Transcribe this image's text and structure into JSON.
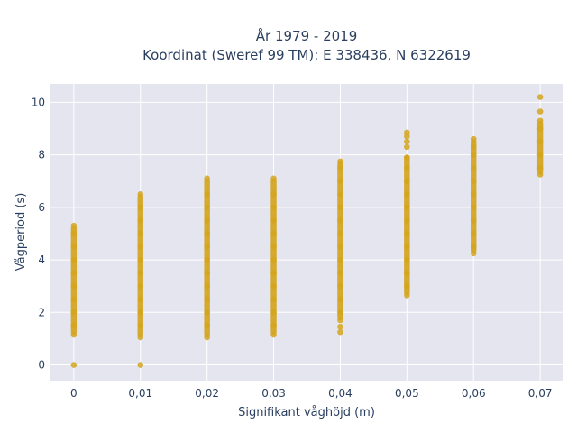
{
  "chart_data": {
    "type": "scatter",
    "title_line1": "År 1979 - 2019",
    "title_line2": "Koordinat (Sweref 99 TM): E 338436, N 6322619",
    "xlabel": "Signifikant våghöjd (m)",
    "ylabel": "Vågperiod (s)",
    "x_ticks": [
      "0",
      "0,01",
      "0,02",
      "0,03",
      "0,04",
      "0,05",
      "0,06",
      "0,07"
    ],
    "y_ticks": [
      "0",
      "2",
      "4",
      "6",
      "8",
      "10"
    ],
    "x_values": [
      0,
      0.01,
      0.02,
      0.03,
      0.04,
      0.05,
      0.06,
      0.07
    ],
    "xlim": [
      -0.0035,
      0.0735
    ],
    "ylim": [
      -0.6,
      10.7
    ],
    "grid": true,
    "marker_color": "#d4a41c",
    "plot_background": "#e5e5ef",
    "points": [
      {
        "x": 0,
        "y": 0
      },
      {
        "x": 0,
        "y": 1.15
      },
      {
        "x": 0,
        "y": 1.5
      },
      {
        "x": 0,
        "y": 2.0
      },
      {
        "x": 0,
        "y": 2.5
      },
      {
        "x": 0,
        "y": 3.0
      },
      {
        "x": 0,
        "y": 3.5
      },
      {
        "x": 0,
        "y": 4.0
      },
      {
        "x": 0,
        "y": 4.5
      },
      {
        "x": 0,
        "y": 5.0
      },
      {
        "x": 0,
        "y": 5.3
      },
      {
        "x": 0.01,
        "y": 0
      },
      {
        "x": 0.01,
        "y": 1.05
      },
      {
        "x": 0.01,
        "y": 1.5
      },
      {
        "x": 0.01,
        "y": 2.0
      },
      {
        "x": 0.01,
        "y": 2.5
      },
      {
        "x": 0.01,
        "y": 3.0
      },
      {
        "x": 0.01,
        "y": 3.5
      },
      {
        "x": 0.01,
        "y": 4.0
      },
      {
        "x": 0.01,
        "y": 4.5
      },
      {
        "x": 0.01,
        "y": 5.0
      },
      {
        "x": 0.01,
        "y": 5.5
      },
      {
        "x": 0.01,
        "y": 6.0
      },
      {
        "x": 0.01,
        "y": 6.5
      },
      {
        "x": 0.02,
        "y": 1.05
      },
      {
        "x": 0.02,
        "y": 1.5
      },
      {
        "x": 0.02,
        "y": 2.0
      },
      {
        "x": 0.02,
        "y": 2.5
      },
      {
        "x": 0.02,
        "y": 3.0
      },
      {
        "x": 0.02,
        "y": 3.5
      },
      {
        "x": 0.02,
        "y": 4.0
      },
      {
        "x": 0.02,
        "y": 4.5
      },
      {
        "x": 0.02,
        "y": 5.0
      },
      {
        "x": 0.02,
        "y": 5.5
      },
      {
        "x": 0.02,
        "y": 6.0
      },
      {
        "x": 0.02,
        "y": 6.5
      },
      {
        "x": 0.02,
        "y": 7.1
      },
      {
        "x": 0.03,
        "y": 1.15
      },
      {
        "x": 0.03,
        "y": 1.5
      },
      {
        "x": 0.03,
        "y": 2.0
      },
      {
        "x": 0.03,
        "y": 2.5
      },
      {
        "x": 0.03,
        "y": 3.0
      },
      {
        "x": 0.03,
        "y": 3.5
      },
      {
        "x": 0.03,
        "y": 4.0
      },
      {
        "x": 0.03,
        "y": 4.5
      },
      {
        "x": 0.03,
        "y": 5.0
      },
      {
        "x": 0.03,
        "y": 5.5
      },
      {
        "x": 0.03,
        "y": 6.0
      },
      {
        "x": 0.03,
        "y": 6.5
      },
      {
        "x": 0.03,
        "y": 7.1
      },
      {
        "x": 0.04,
        "y": 1.25
      },
      {
        "x": 0.04,
        "y": 1.45
      },
      {
        "x": 0.04,
        "y": 1.7
      },
      {
        "x": 0.04,
        "y": 2.0
      },
      {
        "x": 0.04,
        "y": 2.5
      },
      {
        "x": 0.04,
        "y": 3.0
      },
      {
        "x": 0.04,
        "y": 3.5
      },
      {
        "x": 0.04,
        "y": 4.0
      },
      {
        "x": 0.04,
        "y": 4.5
      },
      {
        "x": 0.04,
        "y": 5.0
      },
      {
        "x": 0.04,
        "y": 5.5
      },
      {
        "x": 0.04,
        "y": 6.0
      },
      {
        "x": 0.04,
        "y": 6.5
      },
      {
        "x": 0.04,
        "y": 7.0
      },
      {
        "x": 0.04,
        "y": 7.5
      },
      {
        "x": 0.04,
        "y": 7.75
      },
      {
        "x": 0.05,
        "y": 2.65
      },
      {
        "x": 0.05,
        "y": 3.0
      },
      {
        "x": 0.05,
        "y": 3.5
      },
      {
        "x": 0.05,
        "y": 4.0
      },
      {
        "x": 0.05,
        "y": 4.5
      },
      {
        "x": 0.05,
        "y": 5.0
      },
      {
        "x": 0.05,
        "y": 5.5
      },
      {
        "x": 0.05,
        "y": 6.0
      },
      {
        "x": 0.05,
        "y": 6.5
      },
      {
        "x": 0.05,
        "y": 7.0
      },
      {
        "x": 0.05,
        "y": 7.5
      },
      {
        "x": 0.05,
        "y": 7.9
      },
      {
        "x": 0.05,
        "y": 8.3
      },
      {
        "x": 0.05,
        "y": 8.5
      },
      {
        "x": 0.05,
        "y": 8.7
      },
      {
        "x": 0.05,
        "y": 8.85
      },
      {
        "x": 0.06,
        "y": 4.25
      },
      {
        "x": 0.06,
        "y": 4.5
      },
      {
        "x": 0.06,
        "y": 5.0
      },
      {
        "x": 0.06,
        "y": 5.5
      },
      {
        "x": 0.06,
        "y": 6.0
      },
      {
        "x": 0.06,
        "y": 6.5
      },
      {
        "x": 0.06,
        "y": 7.0
      },
      {
        "x": 0.06,
        "y": 7.5
      },
      {
        "x": 0.06,
        "y": 8.0
      },
      {
        "x": 0.06,
        "y": 8.3
      },
      {
        "x": 0.06,
        "y": 8.6
      },
      {
        "x": 0.07,
        "y": 7.25
      },
      {
        "x": 0.07,
        "y": 7.5
      },
      {
        "x": 0.07,
        "y": 8.0
      },
      {
        "x": 0.07,
        "y": 8.5
      },
      {
        "x": 0.07,
        "y": 9.0
      },
      {
        "x": 0.07,
        "y": 9.3
      },
      {
        "x": 0.07,
        "y": 9.65
      },
      {
        "x": 0.07,
        "y": 10.2
      }
    ],
    "bands": [
      {
        "x": 0,
        "y_min": 1.15,
        "y_max": 5.3
      },
      {
        "x": 0.01,
        "y_min": 1.05,
        "y_max": 6.5
      },
      {
        "x": 0.02,
        "y_min": 1.05,
        "y_max": 7.1
      },
      {
        "x": 0.03,
        "y_min": 1.15,
        "y_max": 7.1
      },
      {
        "x": 0.04,
        "y_min": 1.7,
        "y_max": 7.75
      },
      {
        "x": 0.05,
        "y_min": 2.65,
        "y_max": 8.0
      },
      {
        "x": 0.06,
        "y_min": 4.25,
        "y_max": 8.6
      },
      {
        "x": 0.07,
        "y_min": 7.25,
        "y_max": 9.3
      }
    ]
  }
}
